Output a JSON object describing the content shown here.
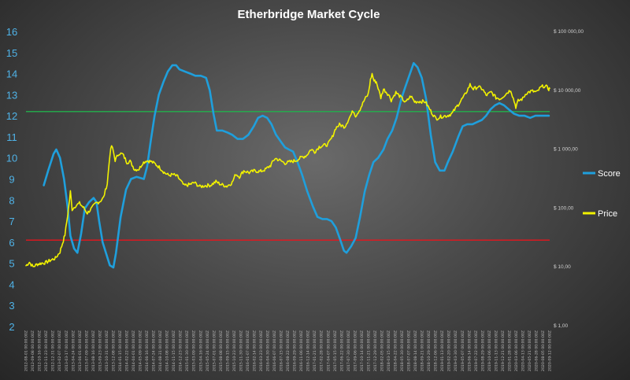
{
  "chart_data": {
    "type": "line",
    "title": "Etherbridge Market Cycle",
    "x_range": [
      "2012-08-01",
      "2020-09-20"
    ],
    "y_left": {
      "range": [
        2,
        16
      ],
      "ticks": [
        2,
        3,
        4,
        5,
        6,
        7,
        8,
        9,
        10,
        11,
        12,
        13,
        14,
        15,
        16
      ]
    },
    "y_right": {
      "scale": "log",
      "range": [
        1,
        100000
      ],
      "ticks": [
        1,
        10,
        100,
        1000,
        10000,
        100000
      ],
      "tick_labels": [
        "$ 1,00",
        "$ 10,00",
        "$ 100,00",
        "$ 1 000,00",
        "$ 10 000,00",
        "$ 100 000,00"
      ]
    },
    "x_tick_labels": [
      "2012-08-01",
      "2012-09-08",
      "2012-10-16",
      "2012-11-23",
      "2012-12-31",
      "2013-02-07",
      "2013-03-17",
      "2013-04-24",
      "2013-06-01",
      "2013-07-09",
      "2013-08-16",
      "2013-09-23",
      "2013-10-31",
      "2013-12-08",
      "2014-01-15",
      "2014-02-22",
      "2014-04-01",
      "2014-05-09",
      "2014-06-16",
      "2014-07-24",
      "2014-08-31",
      "2014-10-08",
      "2014-11-15",
      "2014-12-23",
      "2015-01-30",
      "2015-03-09",
      "2015-04-16",
      "2015-05-24",
      "2015-07-01",
      "2015-08-08",
      "2015-09-15",
      "2015-10-23",
      "2015-11-30",
      "2016-01-07",
      "2016-02-14",
      "2016-03-23",
      "2016-04-30",
      "2016-06-07",
      "2016-07-15",
      "2016-08-22",
      "2016-09-29",
      "2016-11-06",
      "2016-12-14",
      "2017-01-21",
      "2017-02-28",
      "2017-04-07",
      "2017-05-15",
      "2017-06-22",
      "2017-07-30",
      "2017-09-06",
      "2017-10-14",
      "2017-11-21",
      "2017-12-29",
      "2018-02-05",
      "2018-03-15",
      "2018-04-22",
      "2018-05-30",
      "2018-07-07",
      "2018-08-14",
      "2018-09-21",
      "2018-10-29",
      "2018-12-06",
      "2019-01-13",
      "2019-02-20",
      "2019-03-30",
      "2019-05-07",
      "2019-06-14",
      "2019-07-22",
      "2019-08-29",
      "2019-10-06",
      "2019-11-13",
      "2019-12-21",
      "2020-01-28",
      "2020-03-06",
      "2020-04-13",
      "2020-05-21",
      "2020-06-28",
      "2020-08-05",
      "2020-09-12"
    ],
    "x_tick_suffix": " 00:00:00Z",
    "reference_lines": [
      {
        "axis": "left",
        "value": 12.2,
        "color": "#22b14c"
      },
      {
        "axis": "left",
        "value": 6.1,
        "color": "#e8141c"
      }
    ],
    "legend_position": "right",
    "series": [
      {
        "name": "Score",
        "axis": "left",
        "color": "#1f9fdc",
        "points": [
          [
            "2012-11-10",
            8.7
          ],
          [
            "2012-12-05",
            9.4
          ],
          [
            "2013-01-05",
            10.2
          ],
          [
            "2013-01-20",
            10.4
          ],
          [
            "2013-02-10",
            10.0
          ],
          [
            "2013-03-05",
            9.0
          ],
          [
            "2013-03-25",
            7.7
          ],
          [
            "2013-04-10",
            6.3
          ],
          [
            "2013-05-01",
            5.7
          ],
          [
            "2013-05-20",
            5.5
          ],
          [
            "2013-06-10",
            6.4
          ],
          [
            "2013-07-01",
            7.6
          ],
          [
            "2013-07-25",
            7.9
          ],
          [
            "2013-08-20",
            8.1
          ],
          [
            "2013-09-05",
            7.9
          ],
          [
            "2013-09-20",
            7.0
          ],
          [
            "2013-10-10",
            6.0
          ],
          [
            "2013-11-01",
            5.4
          ],
          [
            "2013-11-20",
            4.9
          ],
          [
            "2013-12-10",
            4.8
          ],
          [
            "2013-12-25",
            5.5
          ],
          [
            "2014-01-20",
            7.2
          ],
          [
            "2014-02-20",
            8.5
          ],
          [
            "2014-03-20",
            9.0
          ],
          [
            "2014-04-20",
            9.1
          ],
          [
            "2014-06-01",
            9.0
          ],
          [
            "2014-06-20",
            9.6
          ],
          [
            "2014-07-10",
            10.8
          ],
          [
            "2014-08-01",
            12.0
          ],
          [
            "2014-08-25",
            13.0
          ],
          [
            "2014-09-20",
            13.6
          ],
          [
            "2014-10-15",
            14.1
          ],
          [
            "2014-11-10",
            14.4
          ],
          [
            "2014-12-01",
            14.4
          ],
          [
            "2014-12-20",
            14.2
          ],
          [
            "2015-01-20",
            14.1
          ],
          [
            "2015-02-20",
            14.0
          ],
          [
            "2015-03-20",
            13.9
          ],
          [
            "2015-04-20",
            13.9
          ],
          [
            "2015-05-20",
            13.8
          ],
          [
            "2015-06-10",
            13.2
          ],
          [
            "2015-07-01",
            12.1
          ],
          [
            "2015-07-20",
            11.3
          ],
          [
            "2015-08-20",
            11.3
          ],
          [
            "2015-09-20",
            11.2
          ],
          [
            "2015-10-15",
            11.1
          ],
          [
            "2015-11-15",
            10.9
          ],
          [
            "2015-12-15",
            10.9
          ],
          [
            "2016-01-15",
            11.1
          ],
          [
            "2016-02-15",
            11.5
          ],
          [
            "2016-03-10",
            11.9
          ],
          [
            "2016-04-05",
            12.0
          ],
          [
            "2016-05-01",
            11.9
          ],
          [
            "2016-05-25",
            11.6
          ],
          [
            "2016-06-20",
            11.1
          ],
          [
            "2016-07-15",
            10.8
          ],
          [
            "2016-08-10",
            10.5
          ],
          [
            "2016-09-01",
            10.4
          ],
          [
            "2016-09-25",
            10.3
          ],
          [
            "2016-10-20",
            9.8
          ],
          [
            "2016-11-15",
            9.2
          ],
          [
            "2016-12-15",
            8.4
          ],
          [
            "2017-01-15",
            7.7
          ],
          [
            "2017-02-10",
            7.2
          ],
          [
            "2017-03-10",
            7.1
          ],
          [
            "2017-04-05",
            7.1
          ],
          [
            "2017-05-01",
            7.0
          ],
          [
            "2017-05-25",
            6.7
          ],
          [
            "2017-06-20",
            6.1
          ],
          [
            "2017-07-10",
            5.6
          ],
          [
            "2017-07-25",
            5.5
          ],
          [
            "2017-08-20",
            5.8
          ],
          [
            "2017-09-15",
            6.2
          ],
          [
            "2017-10-10",
            7.2
          ],
          [
            "2017-11-05",
            8.4
          ],
          [
            "2017-12-01",
            9.2
          ],
          [
            "2017-12-25",
            9.8
          ],
          [
            "2018-01-20",
            10.0
          ],
          [
            "2018-02-20",
            10.4
          ],
          [
            "2018-03-15",
            10.9
          ],
          [
            "2018-04-10",
            11.3
          ],
          [
            "2018-05-05",
            11.9
          ],
          [
            "2018-06-01",
            12.8
          ],
          [
            "2018-06-25",
            13.4
          ],
          [
            "2018-07-20",
            14.0
          ],
          [
            "2018-08-10",
            14.5
          ],
          [
            "2018-09-01",
            14.3
          ],
          [
            "2018-09-25",
            13.8
          ],
          [
            "2018-10-20",
            12.8
          ],
          [
            "2018-11-15",
            11.1
          ],
          [
            "2018-12-10",
            9.8
          ],
          [
            "2019-01-05",
            9.4
          ],
          [
            "2019-02-01",
            9.4
          ],
          [
            "2019-02-20",
            9.8
          ],
          [
            "2019-03-20",
            10.3
          ],
          [
            "2019-04-20",
            11.0
          ],
          [
            "2019-05-15",
            11.5
          ],
          [
            "2019-06-10",
            11.6
          ],
          [
            "2019-07-10",
            11.6
          ],
          [
            "2019-08-05",
            11.7
          ],
          [
            "2019-09-01",
            11.8
          ],
          [
            "2019-09-25",
            12.0
          ],
          [
            "2019-10-20",
            12.3
          ],
          [
            "2019-11-15",
            12.5
          ],
          [
            "2019-12-10",
            12.6
          ],
          [
            "2020-01-05",
            12.5
          ],
          [
            "2020-02-01",
            12.3
          ],
          [
            "2020-03-01",
            12.1
          ],
          [
            "2020-04-01",
            12.0
          ],
          [
            "2020-05-01",
            12.0
          ],
          [
            "2020-06-01",
            11.9
          ],
          [
            "2020-07-01",
            12.0
          ],
          [
            "2020-08-01",
            12.0
          ],
          [
            "2020-09-15",
            12.0
          ]
        ]
      },
      {
        "name": "Price",
        "axis": "right",
        "color": "#f2f200",
        "points": [
          [
            "2012-08-01",
            10.5
          ],
          [
            "2012-08-20",
            12
          ],
          [
            "2012-09-10",
            10
          ],
          [
            "2012-10-01",
            11
          ],
          [
            "2012-10-25",
            11.5
          ],
          [
            "2012-11-20",
            11.8
          ],
          [
            "2012-12-20",
            13
          ],
          [
            "2013-01-15",
            14
          ],
          [
            "2013-02-10",
            18
          ],
          [
            "2013-03-10",
            35
          ],
          [
            "2013-03-30",
            95
          ],
          [
            "2013-04-10",
            190
          ],
          [
            "2013-04-20",
            95
          ],
          [
            "2013-05-10",
            110
          ],
          [
            "2013-06-01",
            120
          ],
          [
            "2013-06-25",
            100
          ],
          [
            "2013-07-15",
            82
          ],
          [
            "2013-08-10",
            100
          ],
          [
            "2013-09-01",
            120
          ],
          [
            "2013-09-25",
            130
          ],
          [
            "2013-10-15",
            150
          ],
          [
            "2013-11-05",
            260
          ],
          [
            "2013-11-20",
            800
          ],
          [
            "2013-11-30",
            1150
          ],
          [
            "2013-12-10",
            900
          ],
          [
            "2013-12-20",
            650
          ],
          [
            "2014-01-10",
            850
          ],
          [
            "2014-02-01",
            820
          ],
          [
            "2014-02-25",
            600
          ],
          [
            "2014-03-15",
            620
          ],
          [
            "2014-04-10",
            450
          ],
          [
            "2014-05-05",
            460
          ],
          [
            "2014-05-25",
            580
          ],
          [
            "2014-06-15",
            640
          ],
          [
            "2014-07-10",
            620
          ],
          [
            "2014-08-05",
            560
          ],
          [
            "2014-09-01",
            480
          ],
          [
            "2014-09-25",
            400
          ],
          [
            "2014-10-20",
            360
          ],
          [
            "2014-11-15",
            370
          ],
          [
            "2014-12-10",
            340
          ],
          [
            "2015-01-15",
            240
          ],
          [
            "2015-02-15",
            250
          ],
          [
            "2015-03-15",
            270
          ],
          [
            "2015-04-15",
            230
          ],
          [
            "2015-05-15",
            240
          ],
          [
            "2015-06-15",
            245
          ],
          [
            "2015-07-15",
            280
          ],
          [
            "2015-08-15",
            250
          ],
          [
            "2015-09-15",
            235
          ],
          [
            "2015-10-15",
            270
          ],
          [
            "2015-11-05",
            380
          ],
          [
            "2015-11-25",
            340
          ],
          [
            "2015-12-20",
            430
          ],
          [
            "2016-01-20",
            400
          ],
          [
            "2016-02-20",
            430
          ],
          [
            "2016-03-20",
            415
          ],
          [
            "2016-04-20",
            450
          ],
          [
            "2016-05-20",
            530
          ],
          [
            "2016-06-15",
            700
          ],
          [
            "2016-07-10",
            650
          ],
          [
            "2016-08-10",
            580
          ],
          [
            "2016-09-10",
            610
          ],
          [
            "2016-10-10",
            640
          ],
          [
            "2016-11-10",
            720
          ],
          [
            "2016-12-10",
            780
          ],
          [
            "2017-01-05",
            1000
          ],
          [
            "2017-01-25",
            900
          ],
          [
            "2017-02-20",
            1100
          ],
          [
            "2017-03-15",
            1150
          ],
          [
            "2017-04-10",
            1200
          ],
          [
            "2017-05-05",
            1600
          ],
          [
            "2017-05-25",
            2300
          ],
          [
            "2017-06-15",
            2600
          ],
          [
            "2017-07-15",
            2400
          ],
          [
            "2017-08-10",
            3400
          ],
          [
            "2017-09-01",
            4500
          ],
          [
            "2017-09-15",
            3700
          ],
          [
            "2017-10-10",
            4800
          ],
          [
            "2017-11-05",
            7000
          ],
          [
            "2017-11-25",
            8500
          ],
          [
            "2017-12-08",
            15000
          ],
          [
            "2017-12-17",
            19000
          ],
          [
            "2017-12-28",
            14500
          ],
          [
            "2018-01-10",
            14000
          ],
          [
            "2018-02-05",
            7500
          ],
          [
            "2018-02-20",
            10500
          ],
          [
            "2018-03-20",
            8500
          ],
          [
            "2018-04-05",
            6800
          ],
          [
            "2018-05-01",
            9200
          ],
          [
            "2018-06-01",
            7500
          ],
          [
            "2018-06-25",
            6200
          ],
          [
            "2018-07-25",
            8000
          ],
          [
            "2018-08-15",
            6400
          ],
          [
            "2018-09-15",
            6500
          ],
          [
            "2018-10-15",
            6400
          ],
          [
            "2018-11-20",
            4200
          ],
          [
            "2018-12-15",
            3300
          ],
          [
            "2019-01-15",
            3600
          ],
          [
            "2019-02-15",
            3700
          ],
          [
            "2019-03-15",
            4000
          ],
          [
            "2019-04-10",
            5200
          ],
          [
            "2019-05-10",
            7000
          ],
          [
            "2019-05-30",
            8500
          ],
          [
            "2019-06-26",
            12500
          ],
          [
            "2019-07-15",
            10500
          ],
          [
            "2019-08-10",
            11500
          ],
          [
            "2019-09-05",
            10500
          ],
          [
            "2019-09-25",
            8200
          ],
          [
            "2019-10-25",
            9300
          ],
          [
            "2019-11-20",
            7500
          ],
          [
            "2019-12-15",
            7200
          ],
          [
            "2020-01-15",
            8700
          ],
          [
            "2020-02-12",
            10200
          ],
          [
            "2020-03-12",
            5200
          ],
          [
            "2020-03-25",
            6600
          ],
          [
            "2020-04-20",
            7200
          ],
          [
            "2020-05-10",
            9000
          ],
          [
            "2020-06-10",
            9700
          ],
          [
            "2020-07-10",
            9300
          ],
          [
            "2020-07-30",
            11100
          ],
          [
            "2020-08-15",
            11800
          ],
          [
            "2020-09-01",
            11500
          ],
          [
            "2020-09-15",
            10500
          ],
          [
            "2020-09-20",
            10800
          ]
        ]
      }
    ]
  }
}
